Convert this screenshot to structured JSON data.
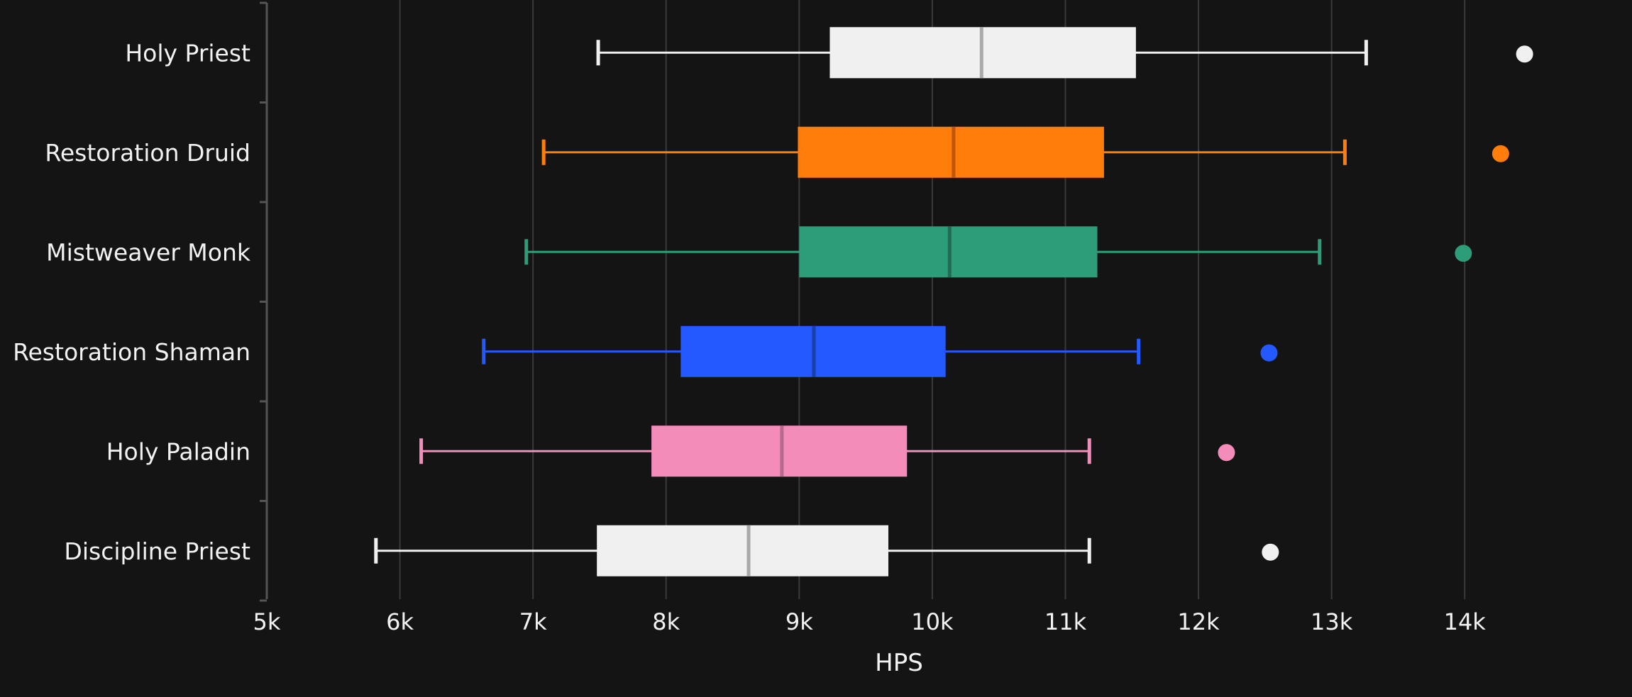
{
  "chart_data": {
    "type": "box",
    "xlabel": "HPS",
    "xlim": [
      5000,
      14500
    ],
    "x_ticks": [
      5000,
      6000,
      7000,
      8000,
      9000,
      10000,
      11000,
      12000,
      13000,
      14000
    ],
    "x_tick_labels": [
      "5k",
      "6k",
      "7k",
      "8k",
      "9k",
      "10k",
      "11k",
      "12k",
      "13k",
      "14k"
    ],
    "grid": "vertical",
    "categories": [
      "Holy Priest",
      "Restoration Druid",
      "Mistweaver Monk",
      "Restoration Shaman",
      "Holy Paladin",
      "Discipline Priest"
    ],
    "series": [
      {
        "label": "Holy Priest",
        "color": "#f0f0f0",
        "median_color": "#a9a9a9",
        "whisker_low": 7490,
        "q1": 9230,
        "median": 10370,
        "q3": 11530,
        "whisker_high": 13260,
        "outliers": [
          14450
        ]
      },
      {
        "label": "Restoration Druid",
        "color": "#ff7d0a",
        "median_color": "#c0560a",
        "whisker_low": 7080,
        "q1": 8990,
        "median": 10160,
        "q3": 11290,
        "whisker_high": 13100,
        "outliers": [
          14270
        ]
      },
      {
        "label": "Mistweaver Monk",
        "color": "#2d9c78",
        "median_color": "#1f6c53",
        "whisker_low": 6950,
        "q1": 9000,
        "median": 10130,
        "q3": 11240,
        "whisker_high": 12910,
        "outliers": [
          13990
        ]
      },
      {
        "label": "Restoration Shaman",
        "color": "#2359ff",
        "median_color": "#1a3fa8",
        "whisker_low": 6630,
        "q1": 8110,
        "median": 9110,
        "q3": 10100,
        "whisker_high": 11550,
        "outliers": [
          12530
        ]
      },
      {
        "label": "Holy Paladin",
        "color": "#f48cba",
        "median_color": "#b66a8e",
        "whisker_low": 6160,
        "q1": 7890,
        "median": 8870,
        "q3": 9810,
        "whisker_high": 11180,
        "outliers": [
          12210
        ]
      },
      {
        "label": "Discipline Priest",
        "color": "#f0f0f0",
        "median_color": "#a9a9a9",
        "whisker_low": 5820,
        "q1": 7480,
        "median": 8620,
        "q3": 9670,
        "whisker_high": 11180,
        "outliers": [
          12540
        ]
      }
    ]
  }
}
